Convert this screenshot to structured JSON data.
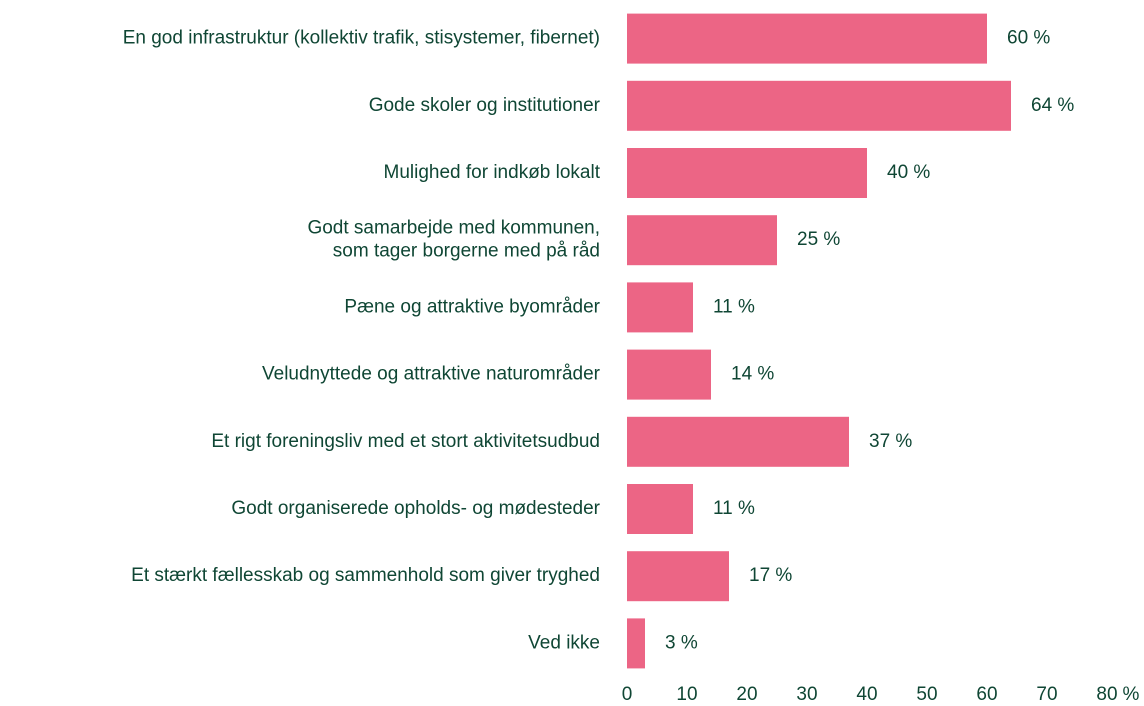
{
  "chart_data": {
    "type": "hbar",
    "categories": [
      "En god infrastruktur (kollektiv trafik, stisystemer, fibernet)",
      "Gode skoler og institutioner",
      "Mulighed for indkøb lokalt",
      "Godt samarbejde med kommunen,\nsom tager borgerne med på råd",
      "Pæne og attraktive byområder",
      "Veludnyttede og attraktive naturområder",
      "Et rigt foreningsliv med et stort aktivitetsudbud",
      "Godt organiserede opholds- og mødesteder",
      "Et stærkt fællesskab og sammenhold som giver tryghed",
      "Ved ikke"
    ],
    "values": [
      60,
      64,
      40,
      25,
      11,
      14,
      37,
      11,
      17,
      3
    ],
    "value_labels": [
      "60 %",
      "64 %",
      "40 %",
      "25 %",
      "11 %",
      "14 %",
      "37 %",
      "11 %",
      "17 %",
      "3 %"
    ],
    "color": "#ec6585",
    "x_label": "%",
    "xlim": [
      0,
      80
    ],
    "xticks": [
      0,
      10,
      20,
      30,
      40,
      50,
      60,
      70,
      80
    ],
    "grid": false
  }
}
